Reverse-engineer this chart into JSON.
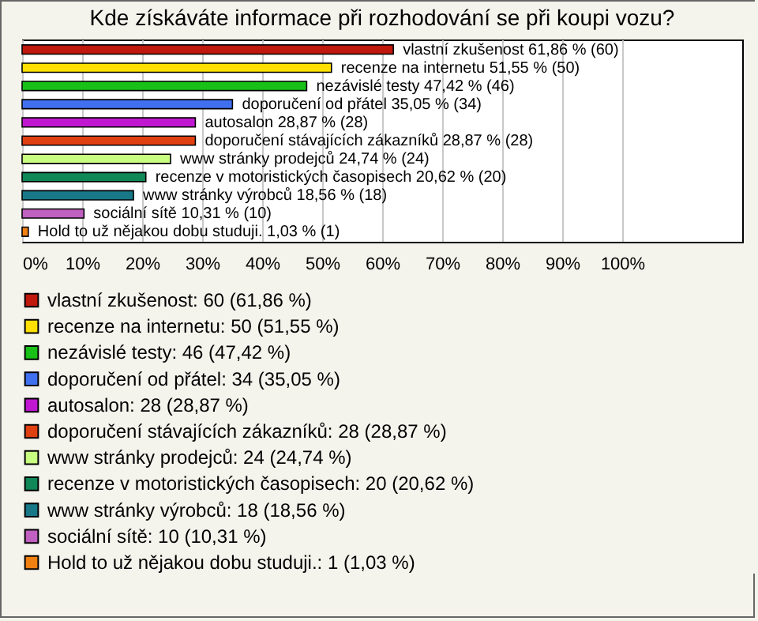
{
  "chart_data": {
    "type": "bar",
    "orientation": "horizontal",
    "title": "Kde získáváte informace při rozhodování se při koupi vozu?",
    "categories": [
      null,
      null,
      null,
      null,
      null,
      null,
      null,
      null,
      null,
      null,
      null
    ],
    "series": [
      {
        "name": "vlastní zkušenost: 60 (61,86 %)",
        "color": "#c0180c",
        "values": [
          61.86,
          null,
          null,
          null,
          null,
          null,
          null,
          null,
          null,
          null,
          null
        ],
        "value_labels": [
          "vlastní zkušenost 61,86 % (60)",
          null,
          null,
          null,
          null,
          null,
          null,
          null,
          null,
          null,
          null
        ]
      },
      {
        "name": "recenze na internetu: 50 (51,55 %)",
        "color": "#ffe000",
        "values": [
          null,
          51.55,
          null,
          null,
          null,
          null,
          null,
          null,
          null,
          null,
          null
        ],
        "value_labels": [
          null,
          "recenze na internetu 51,55 % (50)",
          null,
          null,
          null,
          null,
          null,
          null,
          null,
          null,
          null
        ]
      },
      {
        "name": "nezávislé testy: 46 (47,42 %)",
        "color": "#18c018",
        "values": [
          null,
          null,
          47.42,
          null,
          null,
          null,
          null,
          null,
          null,
          null,
          null
        ],
        "value_labels": [
          null,
          null,
          "nezávislé testy 47,42 % (46)",
          null,
          null,
          null,
          null,
          null,
          null,
          null,
          null
        ]
      },
      {
        "name": "doporučení od přátel: 34 (35,05 %)",
        "color": "#4070f0",
        "values": [
          null,
          null,
          null,
          35.05,
          null,
          null,
          null,
          null,
          null,
          null,
          null
        ],
        "value_labels": [
          null,
          null,
          null,
          "doporučení od přátel 35,05 % (34)",
          null,
          null,
          null,
          null,
          null,
          null,
          null
        ]
      },
      {
        "name": "autosalon: 28 (28,87 %)",
        "color": "#c018d0",
        "values": [
          null,
          null,
          null,
          null,
          28.87,
          null,
          null,
          null,
          null,
          null,
          null
        ],
        "value_labels": [
          null,
          null,
          null,
          null,
          "autosalon 28,87 % (28)",
          null,
          null,
          null,
          null,
          null,
          null
        ]
      },
      {
        "name": "doporučení stávajících zákazníků: 28 (28,87 %)",
        "color": "#e04010",
        "values": [
          null,
          null,
          null,
          null,
          null,
          28.87,
          null,
          null,
          null,
          null,
          null
        ],
        "value_labels": [
          null,
          null,
          null,
          null,
          null,
          "doporučení stávajících zákazníků 28,87 % (28)",
          null,
          null,
          null,
          null,
          null
        ]
      },
      {
        "name": "www stránky prodejců: 24 (24,74 %)",
        "color": "#c8ff80",
        "values": [
          null,
          null,
          null,
          null,
          null,
          null,
          24.74,
          null,
          null,
          null,
          null
        ],
        "value_labels": [
          null,
          null,
          null,
          null,
          null,
          null,
          "www stránky prodejců 24,74 % (24)",
          null,
          null,
          null,
          null
        ]
      },
      {
        "name": "recenze v motoristických časopisech: 20 (20,62 %)",
        "color": "#108858",
        "values": [
          null,
          null,
          null,
          null,
          null,
          null,
          null,
          20.62,
          null,
          null,
          null
        ],
        "value_labels": [
          null,
          null,
          null,
          null,
          null,
          null,
          null,
          "recenze v motoristických časopisech 20,62 % (20)",
          null,
          null,
          null
        ]
      },
      {
        "name": "www stránky výrobců: 18 (18,56 %)",
        "color": "#187888",
        "values": [
          null,
          null,
          null,
          null,
          null,
          null,
          null,
          null,
          18.56,
          null,
          null
        ],
        "value_labels": [
          null,
          null,
          null,
          null,
          null,
          null,
          null,
          null,
          "www stránky výrobců 18,56 % (18)",
          null,
          null
        ]
      },
      {
        "name": "sociální sítě: 10 (10,31 %)",
        "color": "#c060c0",
        "values": [
          null,
          null,
          null,
          null,
          null,
          null,
          null,
          null,
          null,
          10.31,
          null
        ],
        "value_labels": [
          null,
          null,
          null,
          null,
          null,
          null,
          null,
          null,
          null,
          "sociální sítě 10,31 % (10)",
          null
        ]
      },
      {
        "name": "Hold to už nějakou dobu studuji.: 1 (1,03 %)",
        "color": "#f08010",
        "values": [
          null,
          null,
          null,
          null,
          null,
          null,
          null,
          null,
          null,
          null,
          1.03
        ],
        "value_labels": [
          null,
          null,
          null,
          null,
          null,
          null,
          null,
          null,
          null,
          null,
          "Hold to už nějakou dobu studuji. 1,03 % (1)"
        ]
      }
    ],
    "xlim": [
      0,
      120
    ],
    "xticks": [
      {
        "value": 0,
        "label": "0%"
      },
      {
        "value": 10,
        "label": "10%"
      },
      {
        "value": 20,
        "label": "20%"
      },
      {
        "value": 30,
        "label": "30%"
      },
      {
        "value": 40,
        "label": "40%"
      },
      {
        "value": 50,
        "label": "50%"
      },
      {
        "value": 60,
        "label": "60%"
      },
      {
        "value": 70,
        "label": "70%"
      },
      {
        "value": 80,
        "label": "80%"
      },
      {
        "value": 90,
        "label": "90%"
      },
      {
        "value": 100,
        "label": "100%"
      }
    ],
    "grid": "x",
    "legend": "bottom",
    "tick_labels": "x"
  }
}
